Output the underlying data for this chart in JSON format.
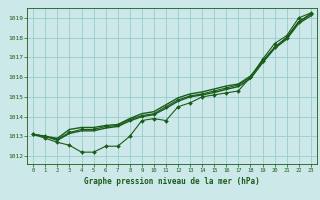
{
  "title": "Graphe pression niveau de la mer (hPa)",
  "bg_color": "#cce8e8",
  "grid_color": "#99cccc",
  "line_color": "#1a5c1a",
  "xlim": [
    -0.5,
    23.5
  ],
  "ylim": [
    1011.6,
    1019.5
  ],
  "yticks": [
    1012,
    1013,
    1014,
    1015,
    1016,
    1017,
    1018,
    1019
  ],
  "xticks": [
    0,
    1,
    2,
    3,
    4,
    5,
    6,
    7,
    8,
    9,
    10,
    11,
    12,
    13,
    14,
    15,
    16,
    17,
    18,
    19,
    20,
    21,
    22,
    23
  ],
  "series": [
    {
      "x": [
        0,
        1,
        2,
        3,
        4,
        5,
        6,
        7,
        8,
        9,
        10,
        11,
        12,
        13,
        14,
        15,
        16,
        17,
        18,
        19,
        20,
        21,
        22,
        23
      ],
      "y": [
        1013.1,
        1012.9,
        1012.7,
        1012.55,
        1012.2,
        1012.2,
        1012.5,
        1012.5,
        1013.0,
        1013.8,
        1013.9,
        1013.8,
        1014.5,
        1014.7,
        1015.0,
        1015.1,
        1015.2,
        1015.3,
        1016.0,
        1016.9,
        1017.7,
        1018.1,
        1019.0,
        1019.25
      ],
      "marker": "D",
      "markersize": 2.0,
      "linewidth": 0.8
    },
    {
      "x": [
        0,
        1,
        2,
        3,
        4,
        5,
        6,
        7,
        8,
        9,
        10,
        11,
        12,
        13,
        14,
        15,
        16,
        17,
        18,
        19,
        20,
        21,
        22,
        23
      ],
      "y": [
        1013.1,
        1013.0,
        1012.85,
        1013.2,
        1013.35,
        1013.35,
        1013.5,
        1013.55,
        1013.85,
        1014.05,
        1014.15,
        1014.5,
        1014.85,
        1015.05,
        1015.15,
        1015.3,
        1015.45,
        1015.6,
        1016.0,
        1016.8,
        1017.5,
        1018.0,
        1018.8,
        1019.2
      ],
      "marker": "D",
      "markersize": 2.0,
      "linewidth": 0.8
    },
    {
      "x": [
        0,
        1,
        2,
        3,
        4,
        5,
        6,
        7,
        8,
        9,
        10,
        11,
        12,
        13,
        14,
        15,
        16,
        17,
        18,
        19,
        20,
        21,
        22,
        23
      ],
      "y": [
        1013.1,
        1013.0,
        1012.9,
        1013.35,
        1013.45,
        1013.45,
        1013.55,
        1013.6,
        1013.9,
        1014.15,
        1014.25,
        1014.6,
        1014.95,
        1015.15,
        1015.25,
        1015.4,
        1015.55,
        1015.65,
        1016.05,
        1016.8,
        1017.5,
        1018.0,
        1018.8,
        1019.2
      ],
      "marker": null,
      "markersize": 0,
      "linewidth": 1.0
    },
    {
      "x": [
        0,
        1,
        2,
        3,
        4,
        5,
        6,
        7,
        8,
        9,
        10,
        11,
        12,
        13,
        14,
        15,
        16,
        17,
        18,
        19,
        20,
        21,
        22,
        23
      ],
      "y": [
        1013.1,
        1013.0,
        1012.8,
        1013.15,
        1013.28,
        1013.28,
        1013.42,
        1013.5,
        1013.78,
        1014.0,
        1014.1,
        1014.42,
        1014.78,
        1015.0,
        1015.1,
        1015.22,
        1015.38,
        1015.52,
        1015.92,
        1016.72,
        1017.45,
        1017.92,
        1018.72,
        1019.1
      ],
      "marker": null,
      "markersize": 0,
      "linewidth": 1.0
    }
  ]
}
